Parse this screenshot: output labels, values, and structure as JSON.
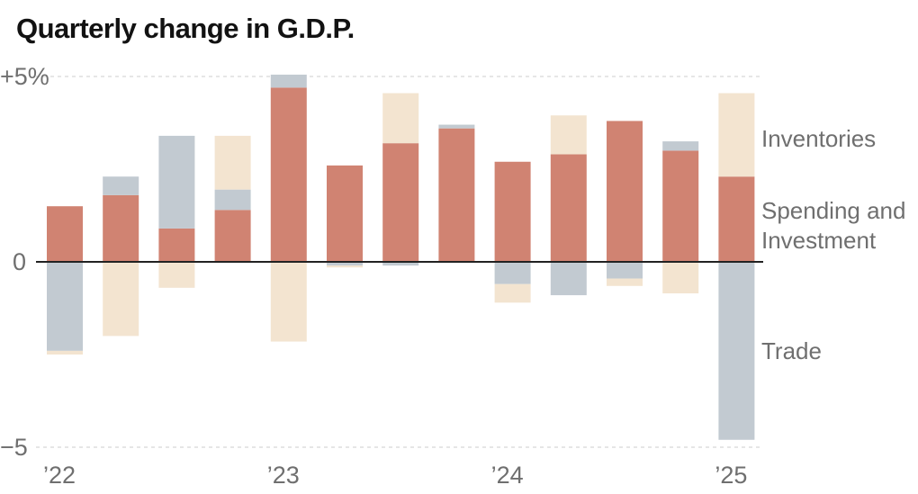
{
  "chart_data": {
    "type": "bar",
    "stacked": true,
    "title": "Quarterly change in G.D.P.",
    "ylim": [
      -5,
      5
    ],
    "yticks": [
      {
        "value": 5,
        "label": "+5%"
      },
      {
        "value": 0,
        "label": "0"
      },
      {
        "value": -5,
        "label": "−5"
      }
    ],
    "xticks": [
      {
        "index": 0,
        "label": "’22"
      },
      {
        "index": 4,
        "label": "’23"
      },
      {
        "index": 8,
        "label": "’24"
      },
      {
        "index": 12,
        "label": "’25"
      }
    ],
    "categories": [
      "2022 Q1",
      "2022 Q2",
      "2022 Q3",
      "2022 Q4",
      "2023 Q1",
      "2023 Q2",
      "2023 Q3",
      "2023 Q4",
      "2024 Q1",
      "2024 Q2",
      "2024 Q3",
      "2024 Q4",
      "2025 Q1"
    ],
    "series": [
      {
        "name": "Spending and Investment",
        "key": "spending",
        "color": "#d08372",
        "values": [
          1.5,
          1.8,
          0.9,
          1.4,
          4.7,
          2.6,
          3.2,
          3.6,
          2.7,
          2.9,
          3.8,
          3.0,
          2.3
        ]
      },
      {
        "name": "Trade",
        "key": "trade",
        "color": "#c2cad1",
        "values": [
          -2.4,
          0.5,
          2.5,
          0.55,
          0.35,
          -0.1,
          -0.1,
          0.1,
          -0.6,
          -0.9,
          -0.45,
          0.25,
          -4.8
        ]
      },
      {
        "name": "Inventories",
        "key": "inventories",
        "color": "#f3e4d0",
        "values": [
          -0.1,
          -2.0,
          -0.7,
          1.45,
          -2.15,
          -0.05,
          1.35,
          0.0,
          -0.5,
          1.05,
          -0.2,
          -0.85,
          2.25
        ]
      }
    ],
    "legend": [
      {
        "label": "Inventories",
        "series": "inventories"
      },
      {
        "label": "Spending and",
        "series": "spending"
      },
      {
        "label": "Investment",
        "series": "spending"
      },
      {
        "label": "Trade",
        "series": "trade"
      }
    ],
    "grid": true,
    "legend_placement": "right"
  }
}
